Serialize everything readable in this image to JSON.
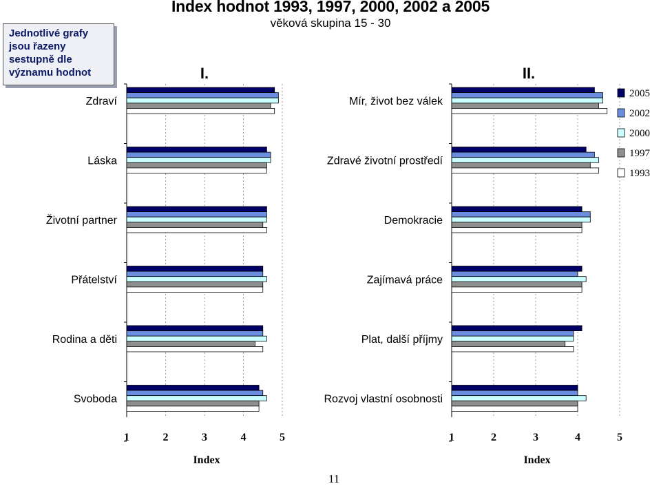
{
  "note": "Jednotlivé grafy jsou řazeny sestupně dle významu hodnot",
  "title": "Index hodnot 1993, 1997, 2000, 2002 a 2005",
  "subtitle": "věková skupina 15 - 30",
  "page_number": "11",
  "colors": {
    "2005": "#000066",
    "2002": "#6b8de0",
    "2000": "#ccffff",
    "1997": "#8f8f8f",
    "1993": "#ffffff"
  },
  "chart_data": [
    {
      "type": "bar",
      "orientation": "horizontal",
      "panel_label": "I.",
      "xlabel": "Index",
      "xlim": [
        1,
        5
      ],
      "xticks": [
        "1",
        "2",
        "3",
        "4",
        "5"
      ],
      "categories": [
        "Zdraví",
        "Láska",
        "Životní partner",
        "Přátelství",
        "Rodina a děti",
        "Svoboda"
      ],
      "series": [
        {
          "name": "2005",
          "values": [
            4.8,
            4.6,
            4.6,
            4.5,
            4.5,
            4.4
          ]
        },
        {
          "name": "2002",
          "values": [
            4.9,
            4.7,
            4.6,
            4.5,
            4.5,
            4.5
          ]
        },
        {
          "name": "2000",
          "values": [
            4.9,
            4.7,
            4.6,
            4.6,
            4.6,
            4.6
          ]
        },
        {
          "name": "1997",
          "values": [
            4.7,
            4.6,
            4.5,
            4.5,
            4.3,
            4.4
          ]
        },
        {
          "name": "1993",
          "values": [
            4.8,
            4.6,
            4.6,
            4.5,
            4.5,
            4.4
          ]
        }
      ]
    },
    {
      "type": "bar",
      "orientation": "horizontal",
      "panel_label": "II.",
      "xlabel": "Index",
      "xlim": [
        1,
        5
      ],
      "xticks": [
        "1",
        "2",
        "3",
        "4",
        "5"
      ],
      "categories": [
        "Mír, život bez válek",
        "Zdravé životní prostředí",
        "Demokracie",
        "Zajímavá práce",
        "Plat, další příjmy",
        "Rozvoj vlastní osobnosti"
      ],
      "series": [
        {
          "name": "2005",
          "values": [
            4.4,
            4.2,
            4.1,
            4.1,
            4.1,
            4.0
          ]
        },
        {
          "name": "2002",
          "values": [
            4.6,
            4.4,
            4.3,
            4.0,
            3.9,
            4.0
          ]
        },
        {
          "name": "2000",
          "values": [
            4.6,
            4.5,
            4.3,
            4.2,
            3.9,
            4.2
          ]
        },
        {
          "name": "1997",
          "values": [
            4.5,
            4.3,
            4.1,
            4.1,
            3.7,
            4.0
          ]
        },
        {
          "name": "1993",
          "values": [
            4.7,
            4.5,
            4.1,
            4.1,
            3.9,
            4.0
          ]
        }
      ],
      "legend": {
        "placement": "right",
        "entries": [
          "2005",
          "2002",
          "2000",
          "1997",
          "1993"
        ]
      }
    }
  ]
}
